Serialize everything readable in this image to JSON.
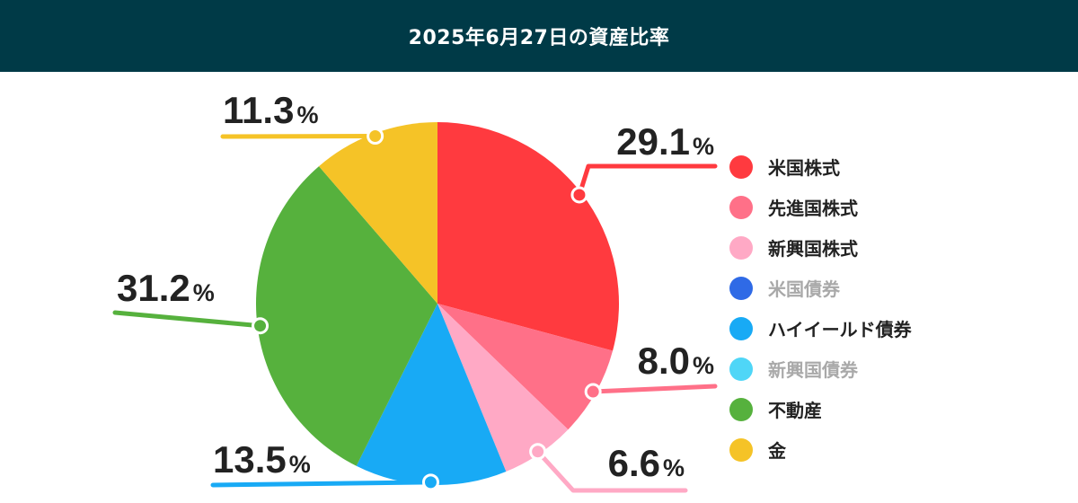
{
  "header": {
    "title": "2025年6月27日の資産比率"
  },
  "chart_data": {
    "type": "pie",
    "title": "2025年6月27日の資産比率",
    "percent_sign": "%",
    "slices": [
      {
        "name": "米国株式",
        "value": 29.1,
        "label": "29.1",
        "color": "#ff3a3f"
      },
      {
        "name": "先進国株式",
        "value": 8.0,
        "label": "8.0",
        "color": "#ff7088"
      },
      {
        "name": "新興国株式",
        "value": 6.6,
        "label": "6.6",
        "color": "#ffa9c5"
      },
      {
        "name": "米国債券",
        "value": 0,
        "label": "",
        "color": "#2f6ae6"
      },
      {
        "name": "ハイイールド債券",
        "value": 13.5,
        "label": "13.5",
        "color": "#18aaf5"
      },
      {
        "name": "新興国債券",
        "value": 0,
        "label": "",
        "color": "#4fd6f7"
      },
      {
        "name": "不動産",
        "value": 31.2,
        "label": "31.2",
        "color": "#56b13d"
      },
      {
        "name": "金",
        "value": 11.3,
        "label": "11.3",
        "color": "#f5c327"
      }
    ],
    "legend": {
      "position": "right",
      "items": [
        {
          "name": "米国株式",
          "color": "#ff3a3f",
          "muted": false
        },
        {
          "name": "先進国株式",
          "color": "#ff7088",
          "muted": false
        },
        {
          "name": "新興国株式",
          "color": "#ffa9c5",
          "muted": false
        },
        {
          "name": "米国債券",
          "color": "#2f6ae6",
          "muted": true
        },
        {
          "name": "ハイイールド債券",
          "color": "#18aaf5",
          "muted": false
        },
        {
          "name": "新興国債券",
          "color": "#4fd6f7",
          "muted": true
        },
        {
          "name": "不動産",
          "color": "#56b13d",
          "muted": false
        },
        {
          "name": "金",
          "color": "#f5c327",
          "muted": false
        }
      ]
    }
  }
}
